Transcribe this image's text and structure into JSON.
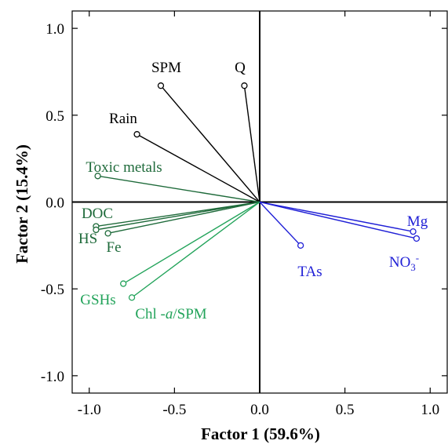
{
  "chart_data": {
    "type": "scatter",
    "subtype": "biplot-loadings",
    "xlabel": "Factor 1 (59.6%)",
    "ylabel": "Factor 2 (15.4%)",
    "xlim": [
      -1.1,
      1.1
    ],
    "ylim": [
      -1.1,
      1.1
    ],
    "xticks": [
      "-1.0",
      "-0.5",
      "0.0",
      "0.5",
      "1.0"
    ],
    "yticks": [
      "1.0",
      "0.5",
      "0.0",
      "-0.5",
      "-1.0"
    ],
    "grid": false,
    "colors": {
      "black": "#000000",
      "dark_green": "#1e6a3a",
      "light_green": "#22a35a",
      "blue": "#1f1fd6"
    },
    "vectors": [
      {
        "label": "SPM",
        "x": -0.58,
        "y": 0.67,
        "color": "black"
      },
      {
        "label": "Q",
        "x": -0.09,
        "y": 0.67,
        "color": "black"
      },
      {
        "label": "Rain",
        "x": -0.72,
        "y": 0.39,
        "color": "black"
      },
      {
        "label": "Toxic metals",
        "x": -0.95,
        "y": 0.15,
        "color": "dark_green"
      },
      {
        "label": "DOC",
        "x": -0.96,
        "y": -0.14,
        "color": "dark_green"
      },
      {
        "label": "HS",
        "x": -0.96,
        "y": -0.16,
        "color": "dark_green"
      },
      {
        "label": "Fe",
        "x": -0.89,
        "y": -0.18,
        "color": "dark_green"
      },
      {
        "label": "GSHs",
        "x": -0.8,
        "y": -0.47,
        "color": "light_green"
      },
      {
        "label": "Chl -a/SPM",
        "x": -0.75,
        "y": -0.55,
        "color": "light_green"
      },
      {
        "label": "TAs",
        "x": 0.24,
        "y": -0.25,
        "color": "blue"
      },
      {
        "label": "Mg",
        "x": 0.9,
        "y": -0.17,
        "color": "blue"
      },
      {
        "label": "NO3-",
        "x": 0.92,
        "y": -0.21,
        "color": "blue"
      }
    ],
    "label_text": {
      "chl_main": "Chl -",
      "chl_italic": "a",
      "chl_tail": "/SPM",
      "no3_main": "NO",
      "no3_sub": "3",
      "no3_sup": "-"
    }
  }
}
